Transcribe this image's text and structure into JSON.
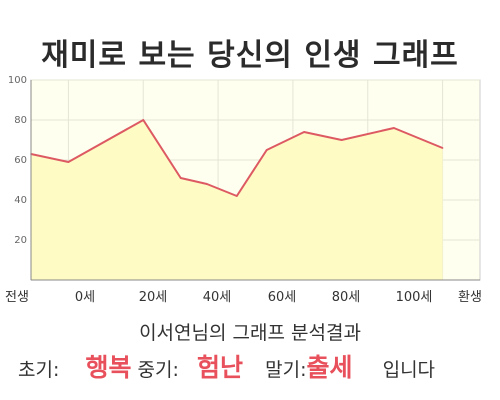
{
  "title": "재미로 보는 당신의 인생 그래프",
  "chart_data": {
    "type": "area",
    "x_labels": [
      "전생",
      "0세",
      "20세",
      "40세",
      "60세",
      "80세",
      "100세",
      "환생"
    ],
    "ylim": [
      0,
      100
    ],
    "yticks": [
      "20",
      "40",
      "60",
      "80",
      "100"
    ],
    "grid": true,
    "series": [
      {
        "x": [
          -10,
          0,
          20,
          30,
          37,
          45,
          53,
          63,
          73,
          87,
          100
        ],
        "y": [
          63,
          59,
          80,
          51,
          48,
          42,
          65,
          74,
          70,
          76,
          66
        ]
      }
    ],
    "colors": {
      "line": "#dd5a63",
      "fill": "#fffbc4",
      "plot_bg": "#fffff0",
      "grid": "#e5e5d5"
    }
  },
  "subtitle": "이서연님의 그래프 분석결과",
  "result": {
    "early_label": "초기:",
    "early_value": "행복",
    "middle_label": "중기:",
    "middle_value": "험난",
    "late_label": "말기:",
    "late_value": "출세",
    "ending": "입니다"
  }
}
